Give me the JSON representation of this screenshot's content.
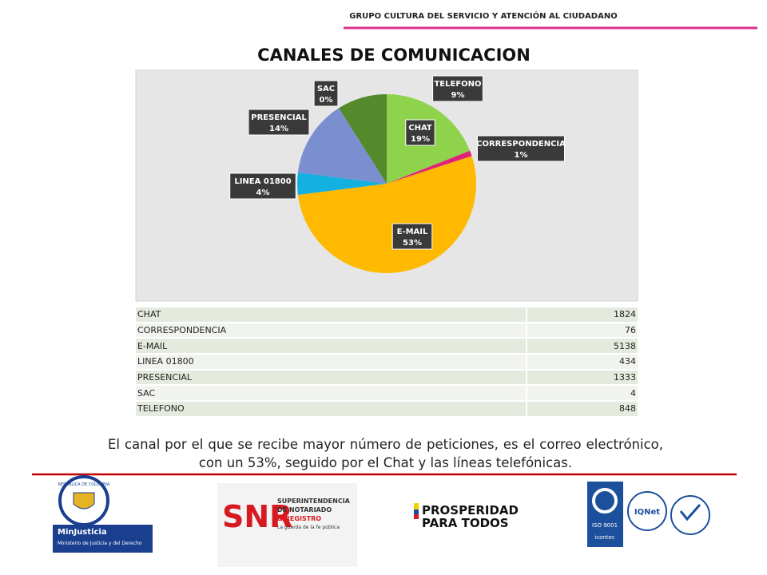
{
  "header": {
    "title": "GRUPO CULTURA DEL SERVICIO Y ATENCIÓN AL CIUDADANO"
  },
  "chart_data": {
    "type": "pie",
    "title": "CANALES DE COMUNICACION",
    "categories": [
      "CHAT",
      "CORRESPONDENCIA",
      "E-MAIL",
      "LINEA 01800",
      "PRESENCIAL",
      "SAC",
      "TELEFONO"
    ],
    "values": [
      19,
      1,
      53,
      4,
      14,
      0,
      9
    ],
    "value_labels": [
      "19%",
      "1%",
      "53%",
      "4%",
      "14%",
      "0%",
      "9%"
    ],
    "colors": [
      "#8fd24b",
      "#e0227b",
      "#ffb900",
      "#14b0e0",
      "#7b8fd0",
      "#4472c4",
      "#548a2c"
    ]
  },
  "table": {
    "rows": [
      [
        "CHAT",
        1824
      ],
      [
        "CORRESPONDENCIA",
        76
      ],
      [
        "E-MAIL",
        5138
      ],
      [
        "LINEA 01800",
        434
      ],
      [
        "PRESENCIAL",
        1333
      ],
      [
        "SAC",
        4
      ],
      [
        "TELEFONO",
        848
      ]
    ]
  },
  "paragraph": "El canal por el que se recibe mayor número de peticiones, es el correo electrónico, con un 53%, seguido por el Chat y las líneas telefónicas.",
  "logos": {
    "colombia": "REPÚBLICA DE COLOMBIA",
    "minjusticia": "MinJusticia",
    "ministerio": "Ministerio de Justicia y del Derecho",
    "snr": "SNR",
    "snr_line1": "SUPERINTENDENCIA",
    "snr_line2": "DE NOTARIADO",
    "snr_line3": "& REGISTRO",
    "snr_tag": "La guarda de la fe pública",
    "prosperidad1": "PROSPERIDAD",
    "prosperidad2": "PARA TODOS",
    "iso": "ISO 9001",
    "icontec": "icontec",
    "iqnet": "IQNet"
  }
}
